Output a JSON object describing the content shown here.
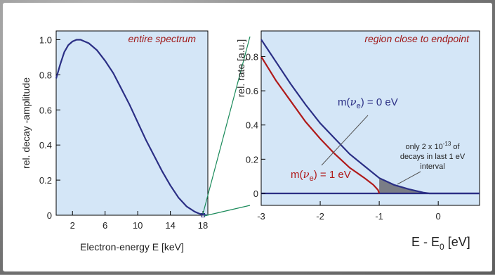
{
  "chart_data": [
    {
      "type": "line",
      "title": "entire spectrum",
      "xlabel": "Electron-energy E [keV]",
      "ylabel": "rel. decay -amplitude",
      "xlim": [
        0,
        18.6
      ],
      "ylim": [
        0,
        1.05
      ],
      "xticks": [
        2,
        6,
        10,
        14,
        18
      ],
      "yticks": [
        0,
        0.2,
        0.4,
        0.6,
        0.8,
        1.0
      ],
      "ytick_labels": [
        "0",
        "0.2",
        "0.4",
        "0.6",
        "0.8",
        "1.0"
      ],
      "series": [
        {
          "color": "#2b2f85",
          "x": [
            0,
            0.5,
            1,
            1.5,
            2,
            2.5,
            3,
            3.5,
            4,
            5,
            6,
            7,
            8,
            9,
            10,
            11,
            12,
            13,
            14,
            15,
            16,
            17,
            17.5,
            18,
            18.5
          ],
          "y": [
            0.78,
            0.86,
            0.93,
            0.97,
            0.99,
            1.0,
            1.0,
            0.99,
            0.98,
            0.94,
            0.88,
            0.81,
            0.72,
            0.63,
            0.53,
            0.43,
            0.34,
            0.25,
            0.17,
            0.1,
            0.05,
            0.02,
            0.01,
            0.003,
            0.0
          ]
        }
      ]
    },
    {
      "type": "line",
      "title": "region close to endpoint",
      "xlabel": "E - E0 [eV]",
      "ylabel": "rel. rate [a.u.]",
      "xlim": [
        -3,
        0.7
      ],
      "ylim": [
        -0.07,
        0.95
      ],
      "xticks": [
        -3,
        -2,
        -1,
        0
      ],
      "yticks": [
        0,
        0.2,
        0.4,
        0.6,
        0.8
      ],
      "series": [
        {
          "name": "m(νe) = 0 eV",
          "color": "#2b2f85",
          "x": [
            -3,
            -2.75,
            -2.5,
            -2.25,
            -2,
            -1.75,
            -1.5,
            -1.25,
            -1,
            -0.75,
            -0.5,
            -0.25,
            -0.15,
            0.7
          ],
          "y": [
            0.9,
            0.77,
            0.64,
            0.52,
            0.41,
            0.32,
            0.23,
            0.16,
            0.09,
            0.05,
            0.025,
            0.005,
            0.0,
            0.0
          ]
        },
        {
          "name": "m(νe) = 1 eV",
          "color": "#b01a1a",
          "x": [
            -3,
            -2.75,
            -2.5,
            -2.25,
            -2,
            -1.75,
            -1.5,
            -1.25,
            -1.1,
            -1.02,
            -1.0
          ],
          "y": [
            0.8,
            0.66,
            0.54,
            0.42,
            0.32,
            0.23,
            0.15,
            0.09,
            0.05,
            0.02,
            0.0
          ]
        }
      ],
      "shaded_region": {
        "x_from": -1,
        "x_to": 0
      },
      "annotations": {
        "m0": {
          "prefix": "m(",
          "nu": "ν",
          "sub": "e",
          "suffix": ") = 0 eV"
        },
        "m1": {
          "prefix": "m(",
          "nu": "ν",
          "sub": "e",
          "suffix": ") = 1 eV"
        },
        "note": [
          "only 2 x 10",
          "-13",
          " of",
          "decays in last 1 eV",
          "interval"
        ],
        "xlabel_parts": {
          "main": "E - E",
          "sub": "0",
          "tail": " [eV]"
        }
      }
    }
  ]
}
